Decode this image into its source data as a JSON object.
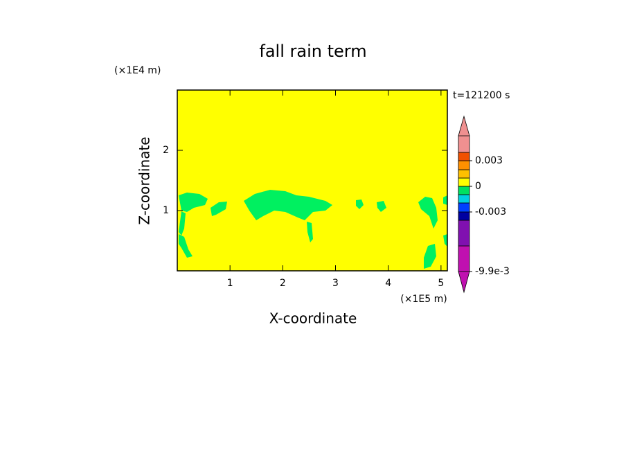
{
  "chart_data": {
    "type": "contour",
    "title": "fall rain term",
    "x_label": "X-coordinate",
    "y_label": "Z-coordinate",
    "x_unit": "(×1E5 m)",
    "y_unit": "(×1E4 m)",
    "annotation": "t=121200 s",
    "xlim": [
      0,
      5.12
    ],
    "xticks": [
      1,
      2,
      3,
      4,
      5
    ],
    "ylim": [
      0,
      3
    ],
    "yticks": [
      1,
      2
    ],
    "background_color": "#ffff00",
    "blob_color": "#00f060",
    "colorbar": {
      "levels": [
        -0.0099,
        -0.0066,
        -0.004,
        -0.003,
        -0.002,
        -0.001,
        0,
        0.001,
        0.002,
        0.003,
        0.004,
        0.006
      ],
      "colors": [
        "#c010b0",
        "#8010b0",
        "#0000a0",
        "#0040ff",
        "#00d0e0",
        "#00e060",
        "#ffff00",
        "#ffc000",
        "#ff9000",
        "#f05000",
        "#f09090"
      ],
      "under_color": "#c010b0",
      "over_color": "#f09090",
      "ticks": [
        {
          "value": -0.0099,
          "label": "-9.9e-3"
        },
        -0.003,
        0,
        0.003
      ]
    }
  }
}
